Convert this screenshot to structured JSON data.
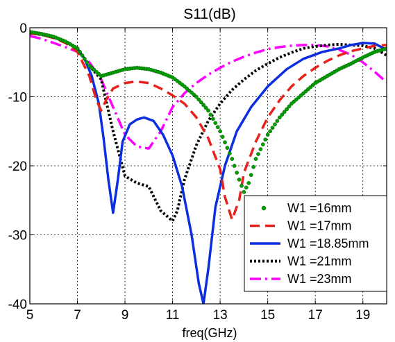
{
  "chart_data": {
    "type": "line",
    "title": "S11(dB)",
    "xlabel": "freq(GHz)",
    "ylabel": "",
    "xlim": [
      5,
      20
    ],
    "ylim": [
      -40,
      0
    ],
    "xticks": [
      5,
      7,
      9,
      11,
      13,
      15,
      17,
      19
    ],
    "yticks": [
      0,
      -10,
      -20,
      -30,
      -40
    ],
    "grid": true,
    "legend_position": "bottom-right",
    "series": [
      {
        "name": "W1 =16mm",
        "color": "#00a000",
        "style": "markers",
        "x": [
          5,
          5.5,
          6,
          6.5,
          7,
          7.5,
          8,
          8.5,
          9,
          9.5,
          10,
          10.5,
          11,
          11.5,
          12,
          12.5,
          13,
          13.5,
          13.8,
          14,
          14.2,
          14.5,
          15,
          15.5,
          16,
          16.5,
          17,
          17.5,
          18,
          18.5,
          19,
          19.5,
          20
        ],
        "y": [
          -0.6,
          -0.9,
          -1.3,
          -2.0,
          -3.0,
          -5.5,
          -7.0,
          -6.5,
          -6.0,
          -5.8,
          -6.0,
          -6.5,
          -7.2,
          -8.5,
          -10.0,
          -12.0,
          -15.0,
          -19.0,
          -22.0,
          -23.8,
          -22.5,
          -19.0,
          -15.5,
          -13.0,
          -11.0,
          -9.5,
          -8.0,
          -7.0,
          -6.0,
          -5.2,
          -4.3,
          -3.5,
          -3.0
        ]
      },
      {
        "name": "W1 =17mm",
        "color": "#e8221b",
        "style": "dash",
        "x": [
          5,
          5.5,
          6,
          6.5,
          7,
          7.5,
          7.8,
          8.0,
          8.2,
          8.5,
          9,
          9.5,
          10,
          10.5,
          11,
          11.5,
          12,
          12.5,
          13,
          13.2,
          13.5,
          13.8,
          14,
          14.5,
          15,
          15.5,
          16,
          16.5,
          17,
          17.5,
          18,
          18.5,
          19,
          19.5,
          20
        ],
        "y": [
          -0.8,
          -1.0,
          -1.5,
          -2.2,
          -3.5,
          -7.0,
          -10.5,
          -12.0,
          -10.5,
          -8.8,
          -8.0,
          -7.8,
          -8.0,
          -8.8,
          -9.8,
          -11.0,
          -13.0,
          -16.0,
          -20.5,
          -24.5,
          -27.8,
          -25.0,
          -21.0,
          -16.5,
          -13.0,
          -10.5,
          -8.5,
          -7.0,
          -5.8,
          -4.8,
          -4.0,
          -3.4,
          -3.0,
          -2.6,
          -2.5
        ]
      },
      {
        "name": "W1 =18.85mm",
        "color": "#0a2ee0",
        "style": "solid",
        "x": [
          5,
          5.5,
          6,
          6.5,
          7,
          7.3,
          7.6,
          7.9,
          8.1,
          8.3,
          8.5,
          8.7,
          8.9,
          9.2,
          9.5,
          9.8,
          10.2,
          10.6,
          11,
          11.4,
          11.8,
          12.1,
          12.3,
          12.5,
          12.8,
          13.2,
          13.7,
          14.3,
          15,
          15.8,
          16.5,
          17.3,
          18,
          18.5,
          19,
          19.5,
          20
        ],
        "y": [
          -0.7,
          -1.0,
          -1.4,
          -2.0,
          -3.0,
          -4.5,
          -7.0,
          -11.0,
          -16.0,
          -22.0,
          -26.8,
          -22.0,
          -16.5,
          -14.0,
          -13.3,
          -13.0,
          -13.5,
          -15.5,
          -18.5,
          -23.0,
          -30.0,
          -37.0,
          -40.0,
          -35.0,
          -26.0,
          -20.0,
          -15.0,
          -11.5,
          -8.5,
          -6.0,
          -4.5,
          -3.5,
          -3.0,
          -2.5,
          -2.2,
          -2.3,
          -3.2
        ]
      },
      {
        "name": "W1 =21mm",
        "color": "#000000",
        "style": "dot",
        "x": [
          5,
          5.5,
          6,
          6.5,
          7,
          7.5,
          8,
          8.5,
          9,
          9.5,
          10,
          10.5,
          11,
          11.2,
          11.5,
          12,
          12.5,
          13,
          13.5,
          14,
          14.5,
          15,
          15.5,
          16,
          16.5,
          17,
          17.5,
          18,
          18.5,
          19,
          19.5,
          20
        ],
        "y": [
          -0.8,
          -1.0,
          -1.4,
          -2.0,
          -3.0,
          -5.5,
          -7.5,
          -15.0,
          -21.5,
          -22.5,
          -23.0,
          -26.5,
          -28.0,
          -26.5,
          -22.0,
          -17.0,
          -13.5,
          -11.0,
          -9.0,
          -7.5,
          -6.2,
          -5.2,
          -4.3,
          -3.6,
          -3.0,
          -2.7,
          -2.5,
          -2.4,
          -2.5,
          -2.6,
          -3.0,
          -4.0
        ]
      },
      {
        "name": "W1 =23mm",
        "color": "#ff00ff",
        "style": "dashdot",
        "x": [
          5,
          5.5,
          6,
          6.5,
          7,
          7.5,
          8,
          8.5,
          9,
          9.5,
          10,
          10.5,
          11,
          11.5,
          12,
          12.5,
          13,
          13.5,
          14,
          14.5,
          15,
          15.5,
          16,
          16.5,
          17,
          17.5,
          18,
          18.5,
          19,
          19.5,
          20
        ],
        "y": [
          -1.2,
          -1.6,
          -2.2,
          -2.8,
          -3.5,
          -5.0,
          -7.5,
          -11.5,
          -15.5,
          -17.2,
          -17.5,
          -15.0,
          -11.5,
          -9.5,
          -8.0,
          -6.8,
          -5.8,
          -4.9,
          -4.2,
          -3.6,
          -3.1,
          -2.8,
          -2.6,
          -2.5,
          -2.5,
          -2.7,
          -3.2,
          -3.9,
          -5.0,
          -6.4,
          -7.9
        ]
      }
    ]
  }
}
